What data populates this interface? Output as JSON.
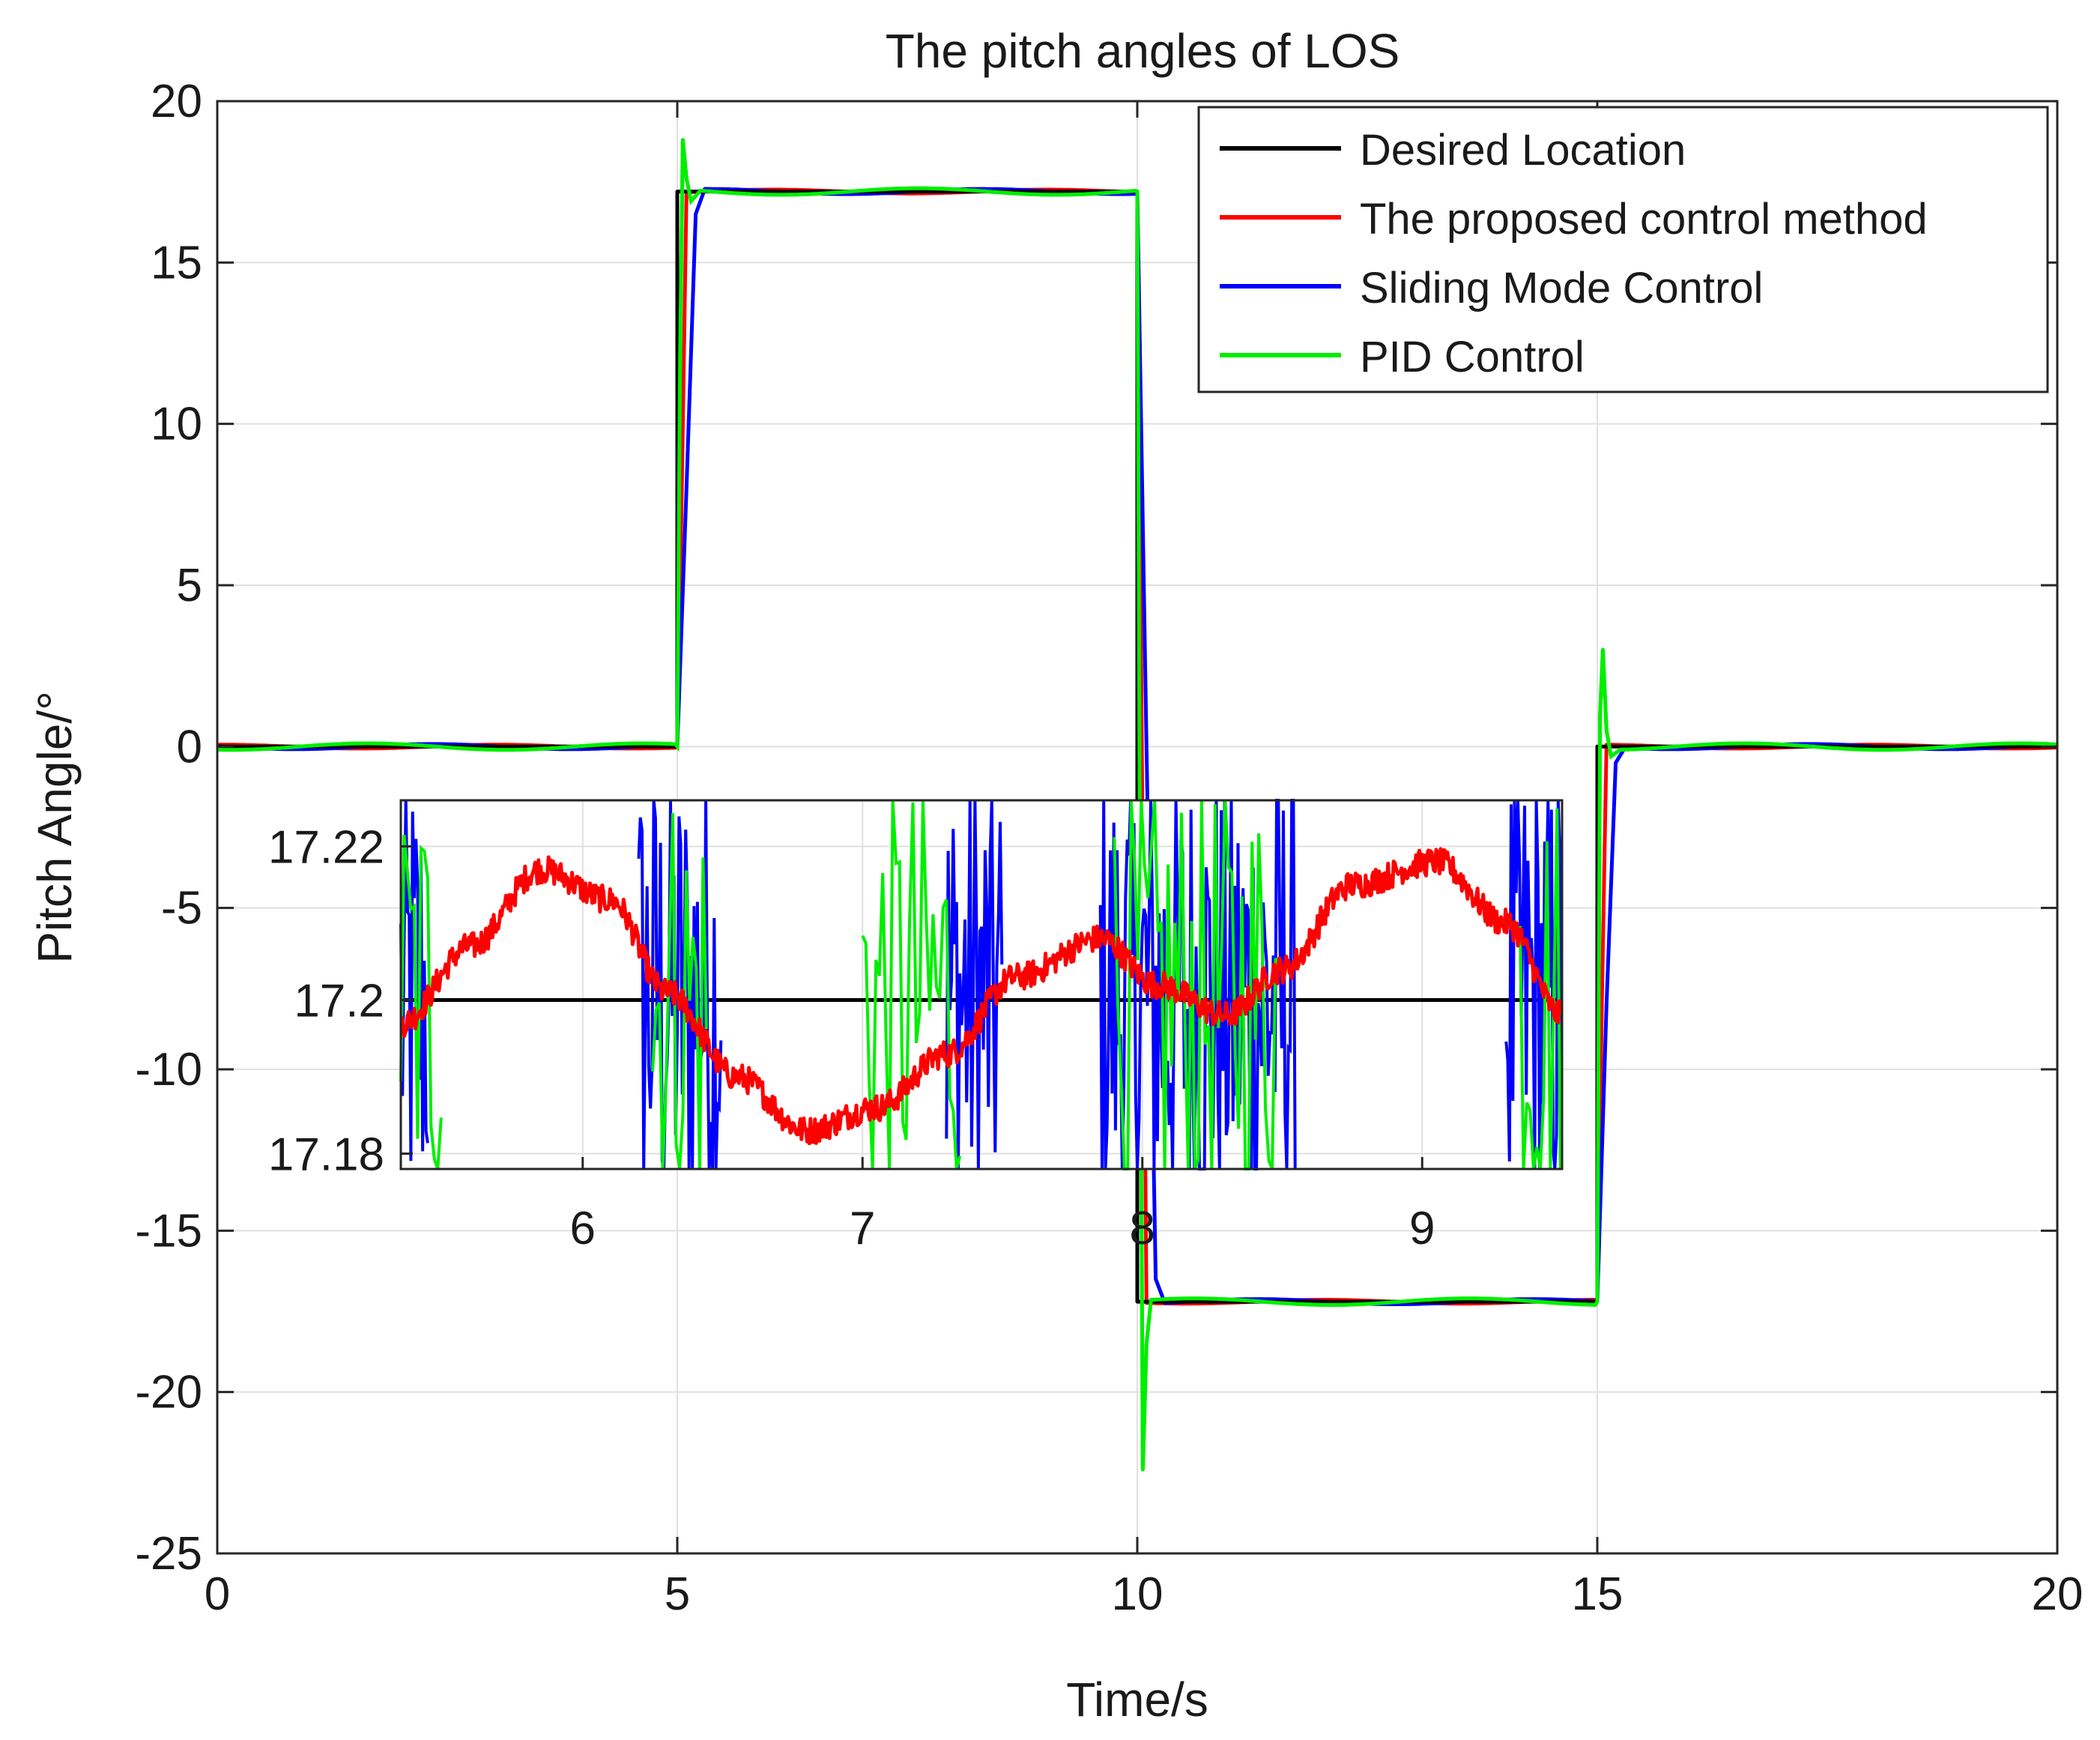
{
  "chart_data": {
    "type": "line",
    "title": "The pitch angles of LOS",
    "xlabel": "Time/s",
    "ylabel": "Pitch Angle/°",
    "xlim": [
      0,
      20
    ],
    "ylim": [
      -25,
      20
    ],
    "grid": true,
    "x_ticks": [
      "0",
      "5",
      "10",
      "15",
      "20"
    ],
    "y_ticks": [
      "20",
      "15",
      "10",
      "5",
      "0",
      "-5",
      "-10",
      "-15",
      "-20",
      "-25"
    ],
    "legend": {
      "placement": "top-right",
      "entries": [
        {
          "name": "Desired Location",
          "color": "#000000"
        },
        {
          "name": "The proposed control method",
          "color": "#ff0000"
        },
        {
          "name": "Sliding Mode Control",
          "color": "#0000ff"
        },
        {
          "name": "PID Control",
          "color": "#00ee00"
        }
      ]
    },
    "series": [
      {
        "name": "Desired Location",
        "color": "#000000",
        "points": [
          [
            0,
            0
          ],
          [
            5,
            0
          ],
          [
            5,
            17.2
          ],
          [
            10,
            17.2
          ],
          [
            10,
            -17.2
          ],
          [
            15,
            -17.2
          ],
          [
            15,
            0
          ],
          [
            20,
            0
          ]
        ]
      },
      {
        "name": "The proposed control method",
        "color": "#ff0000",
        "points": [
          [
            0,
            0
          ],
          [
            5,
            0
          ],
          [
            5.05,
            8
          ],
          [
            5.1,
            17.2
          ],
          [
            10,
            17.2
          ],
          [
            10.05,
            0
          ],
          [
            10.1,
            -17.2
          ],
          [
            15,
            -17.2
          ],
          [
            15.05,
            -8
          ],
          [
            15.1,
            0
          ],
          [
            20,
            0
          ]
        ]
      },
      {
        "name": "Sliding Mode Control",
        "color": "#0000ff",
        "points": [
          [
            0,
            0
          ],
          [
            5,
            0
          ],
          [
            5.1,
            8
          ],
          [
            5.2,
            16.5
          ],
          [
            5.3,
            17.2
          ],
          [
            10,
            17.2
          ],
          [
            10.1,
            0
          ],
          [
            10.2,
            -16.5
          ],
          [
            10.3,
            -17.2
          ],
          [
            15,
            -17.2
          ],
          [
            15.1,
            -8
          ],
          [
            15.2,
            -0.5
          ],
          [
            15.3,
            0
          ],
          [
            20,
            0
          ]
        ]
      },
      {
        "name": "PID Control",
        "color": "#00ee00",
        "points": [
          [
            0,
            0
          ],
          [
            5,
            0
          ],
          [
            5.03,
            12
          ],
          [
            5.06,
            18.8
          ],
          [
            5.1,
            17.6
          ],
          [
            5.15,
            16.9
          ],
          [
            5.25,
            17.2
          ],
          [
            10,
            17.2
          ],
          [
            10.03,
            -5
          ],
          [
            10.06,
            -22.4
          ],
          [
            10.1,
            -18.5
          ],
          [
            10.15,
            -17.2
          ],
          [
            15,
            -17.2
          ],
          [
            15.03,
            1
          ],
          [
            15.06,
            3.0
          ],
          [
            15.1,
            0.5
          ],
          [
            15.15,
            -0.3
          ],
          [
            15.25,
            0
          ],
          [
            20,
            0
          ]
        ]
      }
    ],
    "inset": {
      "xlim": [
        5.35,
        9.5
      ],
      "ylim": [
        17.178,
        17.226
      ],
      "x_ticks": [
        "6",
        "7",
        "8",
        "9"
      ],
      "y_ticks": [
        "17.22",
        "17.2",
        "17.18"
      ],
      "desired_value": 17.2,
      "red_shape": [
        [
          5.35,
          17.197
        ],
        [
          5.6,
          17.207
        ],
        [
          5.85,
          17.217
        ],
        [
          6.1,
          17.213
        ],
        [
          6.3,
          17.201
        ],
        [
          6.55,
          17.19
        ],
        [
          6.8,
          17.183
        ],
        [
          7.05,
          17.186
        ],
        [
          7.3,
          17.193
        ],
        [
          7.55,
          17.203
        ],
        [
          7.85,
          17.208
        ],
        [
          8.05,
          17.202
        ],
        [
          8.3,
          17.198
        ],
        [
          8.5,
          17.204
        ],
        [
          8.75,
          17.215
        ],
        [
          9.05,
          17.218
        ],
        [
          9.3,
          17.21
        ],
        [
          9.5,
          17.198
        ]
      ],
      "blue_bands": [
        [
          5.35,
          5.45
        ],
        [
          6.2,
          6.5
        ],
        [
          7.3,
          7.5
        ],
        [
          7.85,
          8.55
        ],
        [
          9.3,
          9.5
        ]
      ],
      "green_bands": [
        [
          5.35,
          5.5
        ],
        [
          6.25,
          6.45
        ],
        [
          7.0,
          7.35
        ],
        [
          7.9,
          8.5
        ],
        [
          9.35,
          9.5
        ]
      ]
    }
  }
}
